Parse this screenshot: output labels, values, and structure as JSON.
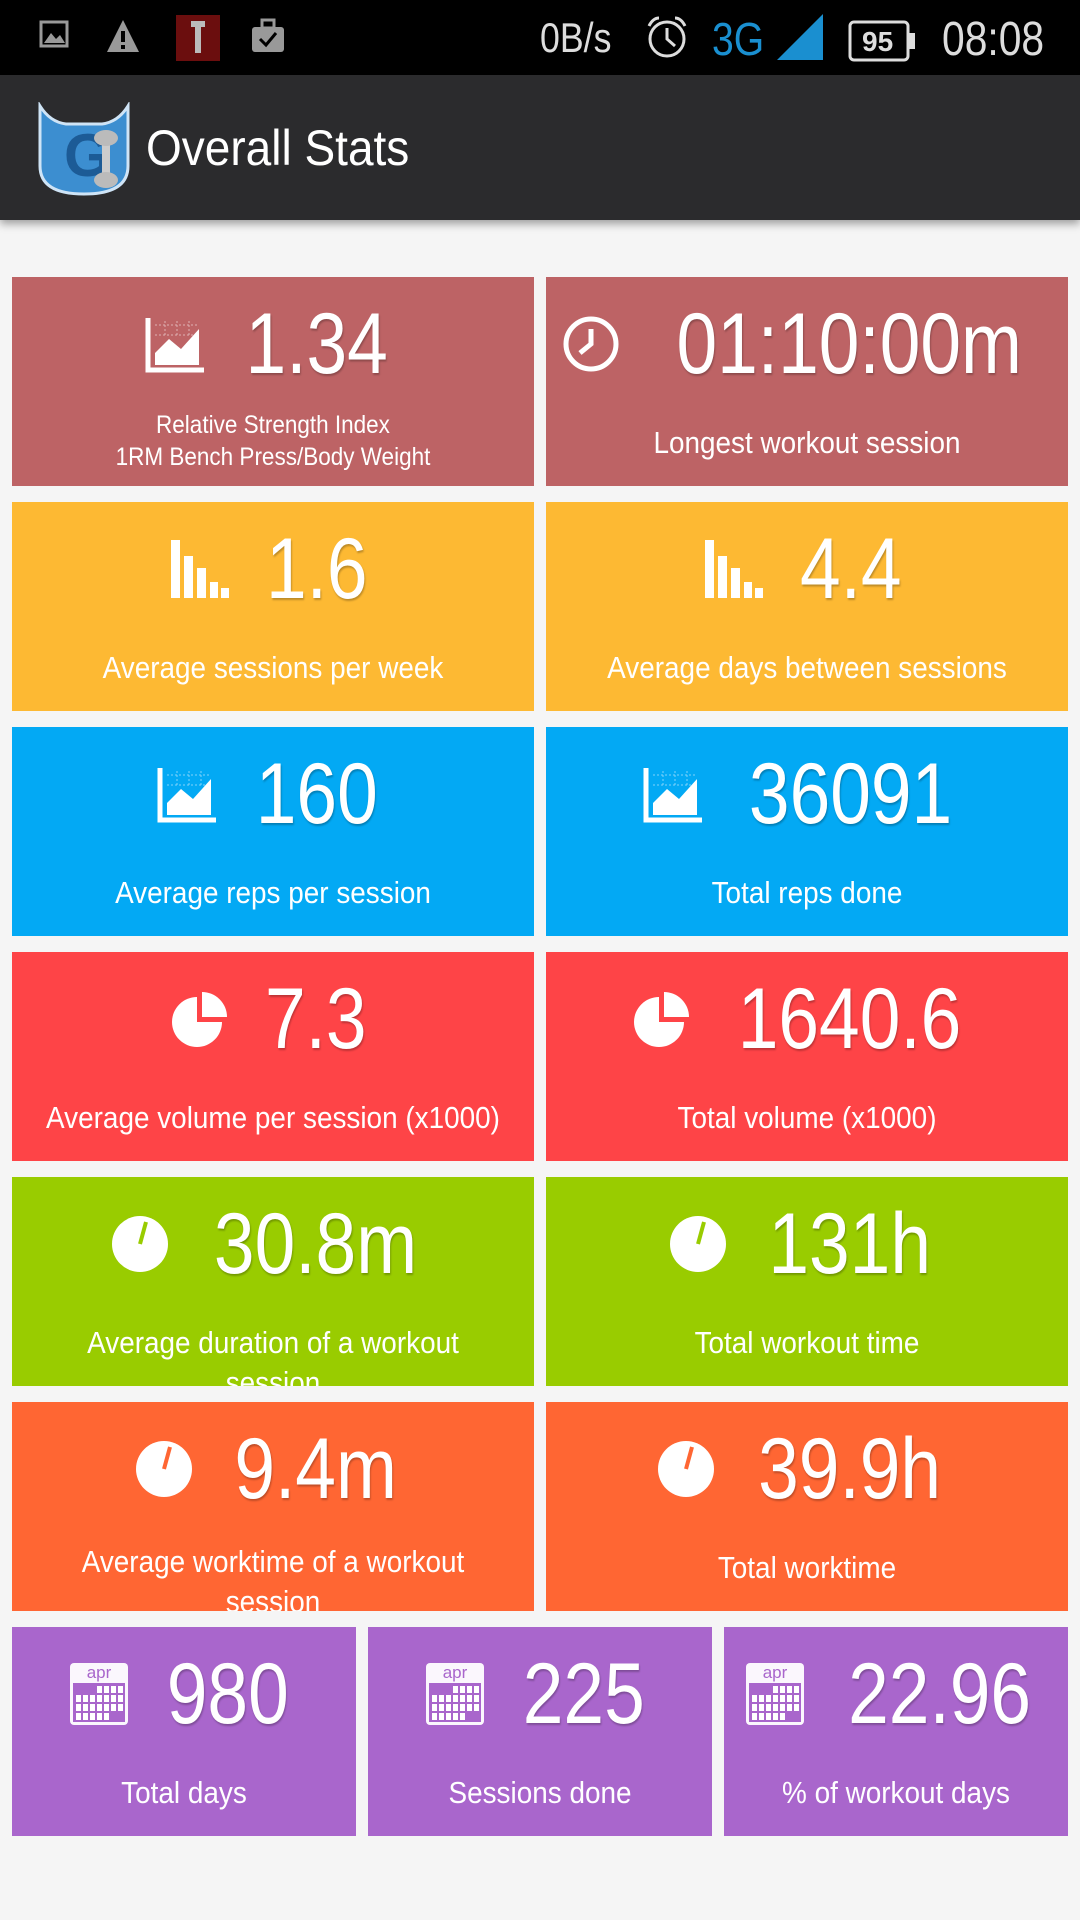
{
  "status_bar": {
    "net_speed": "0B/s",
    "network": "3G",
    "battery": "95",
    "time": "08:08",
    "icons": [
      "image-icon",
      "warning-icon",
      "usb-debug-icon",
      "briefcase-check-icon",
      "alarm-icon",
      "signal-icon",
      "battery-icon"
    ]
  },
  "app_bar": {
    "title": "Overall Stats",
    "logo": "GI"
  },
  "colors": {
    "status_bg": "#000000",
    "appbar_bg": "#2b2b2d",
    "background": "#f5f5f5",
    "network": "#1a8fd0"
  },
  "tiles": [
    {
      "value": "1.34",
      "label": "Relative Strength Index\n1RM Bench Press/Body Weight",
      "icon": "area-chart-icon",
      "color": "#bd6365",
      "small": true
    },
    {
      "value": "01:10:00m",
      "label": "Longest workout session",
      "icon": "clock-icon",
      "color": "#bd6365"
    },
    {
      "value": "1.6",
      "label": "Average sessions per week",
      "icon": "bar-chart-icon",
      "color": "#fdb933"
    },
    {
      "value": "4.4",
      "label": "Average days between sessions",
      "icon": "bar-chart-icon",
      "color": "#fdb933"
    },
    {
      "value": "160",
      "label": "Average reps per session",
      "icon": "area-chart-icon",
      "color": "#03a9f4"
    },
    {
      "value": "36091",
      "label": "Total reps done",
      "icon": "area-chart-icon",
      "color": "#03a9f4"
    },
    {
      "value": "7.3",
      "label": "Average volume per session (x1000)",
      "icon": "pie-chart-icon",
      "color": "#fe4447"
    },
    {
      "value": "1640.6",
      "label": "Total volume (x1000)",
      "icon": "pie-chart-icon",
      "color": "#fe4447"
    },
    {
      "value": "30.8m",
      "label": "Average duration of a workout session",
      "icon": "timer-icon",
      "color": "#99cc00"
    },
    {
      "value": "131h",
      "label": "Total workout time",
      "icon": "timer-icon",
      "color": "#99cc00"
    },
    {
      "value": "9.4m",
      "label": "Average worktime of a workout\nsession",
      "icon": "timer-icon",
      "color": "#ff6633"
    },
    {
      "value": "39.9h",
      "label": "Total worktime",
      "icon": "timer-icon",
      "color": "#ff6633"
    },
    {
      "value": "980",
      "label": "Total days",
      "icon": "calendar-icon",
      "color": "#a966cc",
      "icon_text": "apr"
    },
    {
      "value": "225",
      "label": "Sessions done",
      "icon": "calendar-icon",
      "color": "#a966cc",
      "icon_text": "apr"
    },
    {
      "value": "22.96",
      "label": "% of workout days",
      "icon": "calendar-icon",
      "color": "#a966cc",
      "icon_text": "apr"
    }
  ]
}
